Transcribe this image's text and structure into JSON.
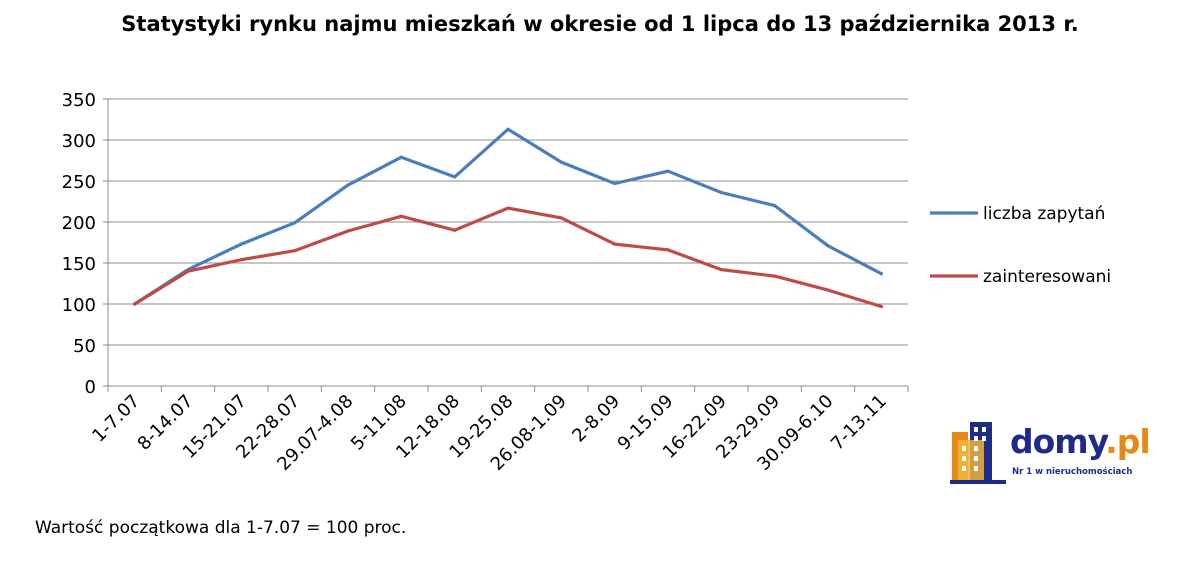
{
  "chart_data": {
    "type": "line",
    "title": "Statystyki rynku najmu mieszkań w okresie od 1 lipca do 13 października 2013 r.",
    "categories": [
      "1-7.07",
      "8-14.07",
      "15-21.07",
      "22-28.07",
      "29.07-4.08",
      "5-11.08",
      "12-18.08",
      "19-25.08",
      "26.08-1.09",
      "2-8.09",
      "9-15.09",
      "16-22.09",
      "23-29.09",
      "30.09-6.10",
      "7-13.11"
    ],
    "series": [
      {
        "name": "liczba zapytań",
        "color": "#4a7ebb",
        "values": [
          100,
          142,
          173,
          199,
          245,
          279,
          255,
          313,
          273,
          247,
          262,
          236,
          220,
          171,
          137
        ]
      },
      {
        "name": "zainteresowani",
        "color": "#be4b48",
        "values": [
          100,
          140,
          154,
          165,
          189,
          207,
          190,
          217,
          205,
          173,
          166,
          142,
          134,
          117,
          97
        ]
      }
    ],
    "yticks": [
      0,
      50,
      100,
      150,
      200,
      250,
      300,
      350
    ],
    "ylim": [
      0,
      350
    ],
    "grid": true,
    "legend_position": "right"
  },
  "footnote": "Wartość początkowa dla 1-7.07 = 100 proc.",
  "logo": {
    "word_main": "domy",
    "word_suffix": ".pl",
    "tagline": "Nr 1 w nieruchomościach",
    "colors": {
      "text": "#1f2b87",
      "accent": "#e58a16"
    }
  }
}
